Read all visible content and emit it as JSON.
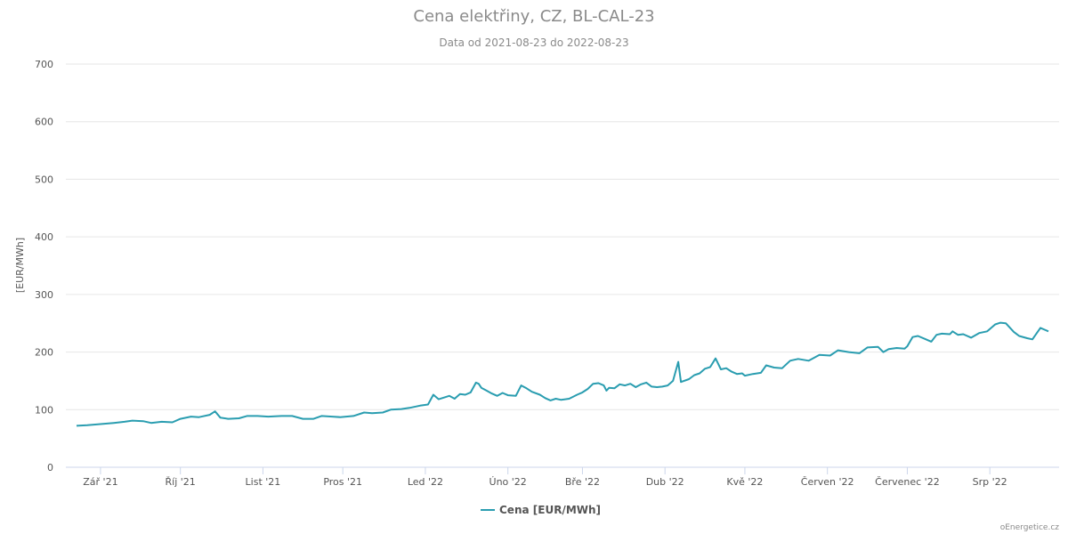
{
  "chart_data": {
    "type": "line",
    "title": "Cena elektřiny, CZ, BL-CAL-23",
    "subtitle": "Data od 2021-08-23 do 2022-08-23",
    "ylabel": "[EUR/MWh]",
    "ylim": [
      0,
      700
    ],
    "yticks": [
      "0",
      "100",
      "200",
      "300",
      "400",
      "500",
      "600",
      "700"
    ],
    "xlim": [
      "2021-08-23",
      "2022-08-23"
    ],
    "xticks": [
      {
        "date": "2021-09-01",
        "label": "Zář '21"
      },
      {
        "date": "2021-10-01",
        "label": "Říj '21"
      },
      {
        "date": "2021-11-01",
        "label": "List '21"
      },
      {
        "date": "2021-12-01",
        "label": "Pros '21"
      },
      {
        "date": "2022-01-01",
        "label": "Led '22"
      },
      {
        "date": "2022-02-01",
        "label": "Úno '22"
      },
      {
        "date": "2022-03-01",
        "label": "Bře '22"
      },
      {
        "date": "2022-04-01",
        "label": "Dub '22"
      },
      {
        "date": "2022-05-01",
        "label": "Kvě '22"
      },
      {
        "date": "2022-06-01",
        "label": "Červen '22"
      },
      {
        "date": "2022-07-01",
        "label": "Červenec '22"
      },
      {
        "date": "2022-08-01",
        "label": "Srp '22"
      }
    ],
    "grid": true,
    "legend_position": "bottom-center",
    "series": [
      {
        "name": "Cena [EUR/MWh]",
        "color": "#2a9db0",
        "points": [
          [
            "2021-08-23",
            72
          ],
          [
            "2021-08-27",
            73
          ],
          [
            "2021-09-01",
            75
          ],
          [
            "2021-09-06",
            77
          ],
          [
            "2021-09-10",
            79
          ],
          [
            "2021-09-13",
            81
          ],
          [
            "2021-09-17",
            80
          ],
          [
            "2021-09-20",
            77
          ],
          [
            "2021-09-24",
            79
          ],
          [
            "2021-09-28",
            78
          ],
          [
            "2021-10-01",
            84
          ],
          [
            "2021-10-05",
            88
          ],
          [
            "2021-10-08",
            87
          ],
          [
            "2021-10-12",
            91
          ],
          [
            "2021-10-14",
            97
          ],
          [
            "2021-10-16",
            86
          ],
          [
            "2021-10-19",
            84
          ],
          [
            "2021-10-23",
            85
          ],
          [
            "2021-10-26",
            89
          ],
          [
            "2021-10-30",
            89
          ],
          [
            "2021-11-03",
            88
          ],
          [
            "2021-11-08",
            89
          ],
          [
            "2021-11-12",
            89
          ],
          [
            "2021-11-16",
            84
          ],
          [
            "2021-11-20",
            84
          ],
          [
            "2021-11-23",
            89
          ],
          [
            "2021-11-27",
            88
          ],
          [
            "2021-11-30",
            87
          ],
          [
            "2021-12-05",
            89
          ],
          [
            "2021-12-09",
            95
          ],
          [
            "2021-12-12",
            94
          ],
          [
            "2021-12-16",
            95
          ],
          [
            "2021-12-19",
            100
          ],
          [
            "2021-12-23",
            101
          ],
          [
            "2021-12-26",
            103
          ],
          [
            "2021-12-30",
            107
          ],
          [
            "2022-01-02",
            109
          ],
          [
            "2022-01-04",
            126
          ],
          [
            "2022-01-06",
            118
          ],
          [
            "2022-01-08",
            121
          ],
          [
            "2022-01-10",
            124
          ],
          [
            "2022-01-12",
            119
          ],
          [
            "2022-01-14",
            127
          ],
          [
            "2022-01-16",
            126
          ],
          [
            "2022-01-18",
            130
          ],
          [
            "2022-01-20",
            147
          ],
          [
            "2022-01-21",
            145
          ],
          [
            "2022-01-22",
            138
          ],
          [
            "2022-01-24",
            133
          ],
          [
            "2022-01-26",
            128
          ],
          [
            "2022-01-28",
            124
          ],
          [
            "2022-01-30",
            129
          ],
          [
            "2022-02-01",
            125
          ],
          [
            "2022-02-04",
            124
          ],
          [
            "2022-02-06",
            142
          ],
          [
            "2022-02-08",
            137
          ],
          [
            "2022-02-10",
            131
          ],
          [
            "2022-02-13",
            126
          ],
          [
            "2022-02-15",
            120
          ],
          [
            "2022-02-17",
            116
          ],
          [
            "2022-02-19",
            119
          ],
          [
            "2022-02-21",
            117
          ],
          [
            "2022-02-24",
            119
          ],
          [
            "2022-02-27",
            126
          ],
          [
            "2022-03-01",
            130
          ],
          [
            "2022-03-03",
            136
          ],
          [
            "2022-03-05",
            145
          ],
          [
            "2022-03-07",
            146
          ],
          [
            "2022-03-09",
            142
          ],
          [
            "2022-03-10",
            133
          ],
          [
            "2022-03-11",
            138
          ],
          [
            "2022-03-13",
            137
          ],
          [
            "2022-03-15",
            144
          ],
          [
            "2022-03-17",
            142
          ],
          [
            "2022-03-19",
            145
          ],
          [
            "2022-03-21",
            139
          ],
          [
            "2022-03-23",
            144
          ],
          [
            "2022-03-25",
            147
          ],
          [
            "2022-03-27",
            140
          ],
          [
            "2022-03-29",
            139
          ],
          [
            "2022-03-31",
            140
          ],
          [
            "2022-04-02",
            142
          ],
          [
            "2022-04-04",
            150
          ],
          [
            "2022-04-06",
            183
          ],
          [
            "2022-04-07",
            148
          ],
          [
            "2022-04-10",
            153
          ],
          [
            "2022-04-12",
            160
          ],
          [
            "2022-04-14",
            163
          ],
          [
            "2022-04-16",
            171
          ],
          [
            "2022-04-18",
            174
          ],
          [
            "2022-04-20",
            189
          ],
          [
            "2022-04-22",
            170
          ],
          [
            "2022-04-24",
            172
          ],
          [
            "2022-04-26",
            166
          ],
          [
            "2022-04-28",
            162
          ],
          [
            "2022-04-30",
            163
          ],
          [
            "2022-05-01",
            159
          ],
          [
            "2022-05-04",
            162
          ],
          [
            "2022-05-07",
            164
          ],
          [
            "2022-05-09",
            177
          ],
          [
            "2022-05-12",
            173
          ],
          [
            "2022-05-15",
            172
          ],
          [
            "2022-05-18",
            185
          ],
          [
            "2022-05-21",
            188
          ],
          [
            "2022-05-25",
            185
          ],
          [
            "2022-05-29",
            195
          ],
          [
            "2022-06-02",
            194
          ],
          [
            "2022-06-05",
            203
          ],
          [
            "2022-06-09",
            200
          ],
          [
            "2022-06-13",
            198
          ],
          [
            "2022-06-16",
            208
          ],
          [
            "2022-06-20",
            209
          ],
          [
            "2022-06-22",
            200
          ],
          [
            "2022-06-24",
            205
          ],
          [
            "2022-06-27",
            207
          ],
          [
            "2022-06-30",
            206
          ],
          [
            "2022-07-01",
            210
          ],
          [
            "2022-07-03",
            226
          ],
          [
            "2022-07-05",
            228
          ],
          [
            "2022-07-08",
            222
          ],
          [
            "2022-07-10",
            218
          ],
          [
            "2022-07-12",
            230
          ],
          [
            "2022-07-14",
            232
          ],
          [
            "2022-07-17",
            231
          ],
          [
            "2022-07-18",
            236
          ],
          [
            "2022-07-20",
            230
          ],
          [
            "2022-07-22",
            231
          ],
          [
            "2022-07-25",
            225
          ],
          [
            "2022-07-28",
            233
          ],
          [
            "2022-07-31",
            236
          ],
          [
            "2022-08-03",
            248
          ],
          [
            "2022-08-05",
            251
          ],
          [
            "2022-08-07",
            250
          ],
          [
            "2022-08-10",
            235
          ],
          [
            "2022-08-12",
            228
          ],
          [
            "2022-08-15",
            224
          ],
          [
            "2022-08-17",
            222
          ],
          [
            "2022-08-20",
            242
          ],
          [
            "2022-08-22",
            238
          ],
          [
            "2022-08-23",
            236
          ]
        ]
      }
    ]
  },
  "credit": "oEnergetice.cz"
}
